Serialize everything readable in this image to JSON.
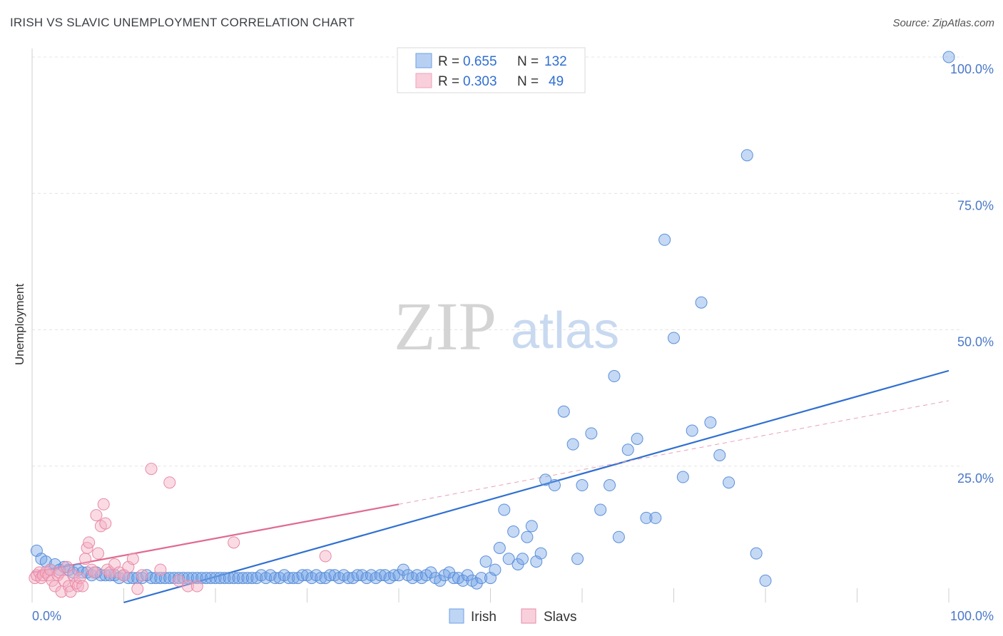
{
  "title": "IRISH VS SLAVIC UNEMPLOYMENT CORRELATION CHART",
  "source": "Source: ZipAtlas.com",
  "watermark": {
    "zip": "ZIP",
    "atlas": "atlas"
  },
  "legend": {
    "rows": [
      {
        "series": "Irish",
        "r_label": "R = ",
        "r_value": "0.655",
        "n_label": "N = ",
        "n_value": "132",
        "color": "#6fa1e6"
      },
      {
        "series": "Slavs",
        "r_label": "R = ",
        "r_value": "0.303",
        "n_label": "N = ",
        "n_value": "49",
        "color": "#f2a0b8"
      }
    ]
  },
  "chart_data": {
    "type": "scatter",
    "ylabel": "Unemployment",
    "xlabel": "",
    "xlim": [
      0,
      100
    ],
    "ylim": [
      0,
      100
    ],
    "x_tick_labels": [
      "0.0%",
      "100.0%"
    ],
    "y_tick_labels": [
      "100.0%",
      "75.0%",
      "50.0%",
      "25.0%"
    ],
    "y_ticks": [
      100,
      75,
      50,
      25
    ],
    "grid": true,
    "legend_position": "bottom-center",
    "series": [
      {
        "name": "Irish",
        "color": "#6fa1e6",
        "stroke": "#5b8fd9",
        "trend": {
          "x0": 10,
          "y0": 0,
          "x1": 100,
          "y1": 42.5,
          "color": "#2f6fd1"
        },
        "points": [
          [
            0.5,
            9.5
          ],
          [
            1,
            8
          ],
          [
            1.5,
            7.5
          ],
          [
            2,
            6
          ],
          [
            2.5,
            7
          ],
          [
            3,
            6
          ],
          [
            3.5,
            6.5
          ],
          [
            4,
            6
          ],
          [
            4.5,
            5.5
          ],
          [
            5,
            6
          ],
          [
            5.5,
            5.5
          ],
          [
            6,
            5.5
          ],
          [
            6.5,
            5
          ],
          [
            7,
            5.5
          ],
          [
            7.5,
            5
          ],
          [
            8,
            5
          ],
          [
            8.5,
            5
          ],
          [
            9,
            5
          ],
          [
            9.5,
            4.5
          ],
          [
            10,
            5
          ],
          [
            10.5,
            4.5
          ],
          [
            11,
            4.5
          ],
          [
            11.5,
            4.5
          ],
          [
            12,
            4.5
          ],
          [
            12.5,
            5
          ],
          [
            13,
            4.5
          ],
          [
            13.5,
            4.5
          ],
          [
            14,
            4.5
          ],
          [
            14.5,
            4.5
          ],
          [
            15,
            4.5
          ],
          [
            15.5,
            4.5
          ],
          [
            16,
            4.5
          ],
          [
            16.5,
            4.5
          ],
          [
            17,
            4.5
          ],
          [
            17.5,
            4.5
          ],
          [
            18,
            4.5
          ],
          [
            18.5,
            4.5
          ],
          [
            19,
            4.5
          ],
          [
            19.5,
            4.5
          ],
          [
            20,
            4.5
          ],
          [
            20.5,
            4.5
          ],
          [
            21,
            4.5
          ],
          [
            21.5,
            4.5
          ],
          [
            22,
            4.5
          ],
          [
            22.5,
            4.5
          ],
          [
            23,
            4.5
          ],
          [
            23.5,
            4.5
          ],
          [
            24,
            4.5
          ],
          [
            24.5,
            4.5
          ],
          [
            25,
            5
          ],
          [
            25.5,
            4.5
          ],
          [
            26,
            5
          ],
          [
            26.5,
            4.5
          ],
          [
            27,
            4.5
          ],
          [
            27.5,
            5
          ],
          [
            28,
            4.5
          ],
          [
            28.5,
            4.5
          ],
          [
            29,
            4.5
          ],
          [
            29.5,
            5
          ],
          [
            30,
            5
          ],
          [
            30.5,
            4.5
          ],
          [
            31,
            5
          ],
          [
            31.5,
            4.5
          ],
          [
            32,
            4.5
          ],
          [
            32.5,
            5
          ],
          [
            33,
            5
          ],
          [
            33.5,
            4.5
          ],
          [
            34,
            5
          ],
          [
            34.5,
            4.5
          ],
          [
            35,
            4.5
          ],
          [
            35.5,
            5
          ],
          [
            36,
            5
          ],
          [
            36.5,
            4.5
          ],
          [
            37,
            5
          ],
          [
            37.5,
            4.5
          ],
          [
            38,
            5
          ],
          [
            38.5,
            5
          ],
          [
            39,
            4.5
          ],
          [
            39.5,
            5
          ],
          [
            40,
            5
          ],
          [
            40.5,
            6
          ],
          [
            41,
            5
          ],
          [
            41.5,
            4.5
          ],
          [
            42,
            5
          ],
          [
            42.5,
            4.5
          ],
          [
            43,
            5
          ],
          [
            43.5,
            5.5
          ],
          [
            44,
            4.5
          ],
          [
            44.5,
            4
          ],
          [
            45,
            5
          ],
          [
            45.5,
            5.5
          ],
          [
            46,
            4.5
          ],
          [
            46.5,
            4.5
          ],
          [
            47,
            4
          ],
          [
            47.5,
            5
          ],
          [
            48,
            4
          ],
          [
            48.5,
            3.5
          ],
          [
            49,
            4.5
          ],
          [
            49.5,
            7.5
          ],
          [
            50,
            4.5
          ],
          [
            50.5,
            6
          ],
          [
            51,
            10
          ],
          [
            51.5,
            17
          ],
          [
            52,
            8
          ],
          [
            52.5,
            13
          ],
          [
            53,
            7
          ],
          [
            53.5,
            8
          ],
          [
            54,
            12
          ],
          [
            54.5,
            14
          ],
          [
            55,
            7.5
          ],
          [
            55.5,
            9
          ],
          [
            56,
            22.5
          ],
          [
            57,
            21.5
          ],
          [
            58,
            35
          ],
          [
            59,
            29
          ],
          [
            59.5,
            8
          ],
          [
            60,
            21.5
          ],
          [
            61,
            31
          ],
          [
            62,
            17
          ],
          [
            63,
            21.5
          ],
          [
            63.5,
            41.5
          ],
          [
            64,
            12
          ],
          [
            65,
            28
          ],
          [
            66,
            30
          ],
          [
            67,
            15.5
          ],
          [
            68,
            15.5
          ],
          [
            69,
            66.5
          ],
          [
            70,
            48.5
          ],
          [
            71,
            23
          ],
          [
            72,
            31.5
          ],
          [
            73,
            55
          ],
          [
            74,
            33
          ],
          [
            75,
            27
          ],
          [
            76,
            22
          ],
          [
            78,
            82
          ],
          [
            79,
            9
          ],
          [
            80,
            4
          ],
          [
            100,
            100
          ]
        ]
      },
      {
        "name": "Slavs",
        "color": "#f4b0c4",
        "stroke": "#e88aa8",
        "trend": {
          "x0": 0,
          "y0": 5.5,
          "x1": 40,
          "y1": 18,
          "color": "#e06a90"
        },
        "trend_ext": {
          "x0": 40,
          "y0": 18,
          "x1": 100,
          "y1": 37,
          "color": "#e8a0b8"
        },
        "points": [
          [
            0.3,
            4.5
          ],
          [
            0.5,
            5
          ],
          [
            0.8,
            5.5
          ],
          [
            1,
            4.5
          ],
          [
            1.2,
            5
          ],
          [
            1.5,
            5.5
          ],
          [
            1.8,
            5
          ],
          [
            2,
            6
          ],
          [
            2.2,
            4
          ],
          [
            2.5,
            3
          ],
          [
            2.8,
            5
          ],
          [
            3,
            5.5
          ],
          [
            3.2,
            2
          ],
          [
            3.5,
            4
          ],
          [
            3.8,
            6.5
          ],
          [
            4,
            3
          ],
          [
            4.2,
            2
          ],
          [
            4.5,
            5
          ],
          [
            4.8,
            3.5
          ],
          [
            5,
            3
          ],
          [
            5.2,
            4.5
          ],
          [
            5.5,
            3
          ],
          [
            5.8,
            8
          ],
          [
            6,
            10
          ],
          [
            6.2,
            11
          ],
          [
            6.5,
            6
          ],
          [
            6.8,
            5.5
          ],
          [
            7,
            16
          ],
          [
            7.2,
            9
          ],
          [
            7.5,
            14
          ],
          [
            7.8,
            18
          ],
          [
            8,
            14.5
          ],
          [
            8.2,
            6
          ],
          [
            8.5,
            5.5
          ],
          [
            9,
            7
          ],
          [
            9.5,
            5.5
          ],
          [
            10,
            5
          ],
          [
            10.5,
            6.5
          ],
          [
            11,
            8
          ],
          [
            11.5,
            2.5
          ],
          [
            12,
            5
          ],
          [
            13,
            24.5
          ],
          [
            14,
            6
          ],
          [
            15,
            22
          ],
          [
            16,
            4
          ],
          [
            17,
            3
          ],
          [
            18,
            3
          ],
          [
            22,
            11
          ],
          [
            32,
            8.5
          ]
        ]
      }
    ]
  }
}
